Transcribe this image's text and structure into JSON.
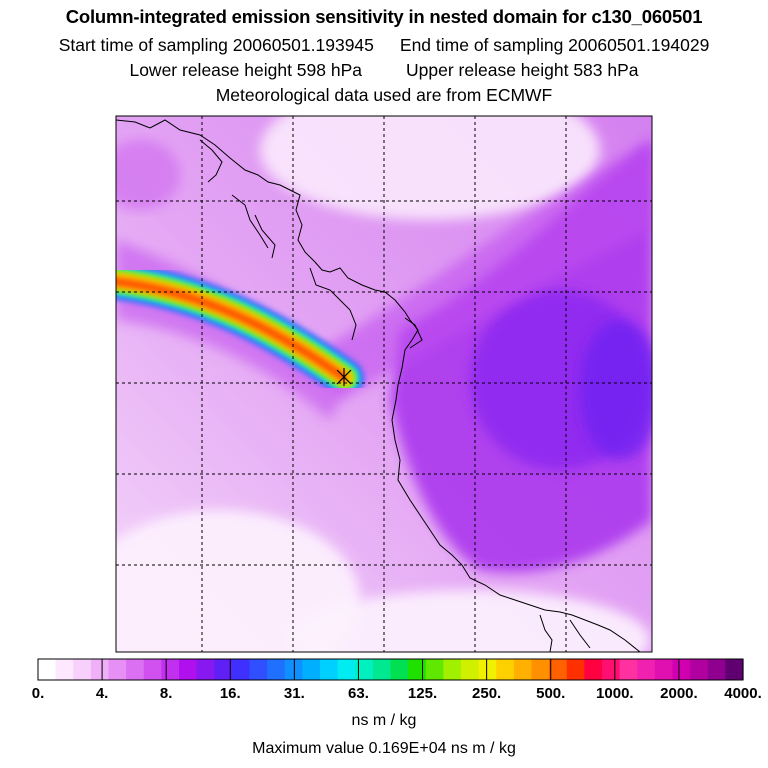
{
  "header": {
    "title": "Column-integrated emission sensitivity in nested domain for c130_060501",
    "start_label": "Start time of sampling 20060501.193945",
    "end_label": "End time of sampling 20060501.194029",
    "lower_label": "Lower release height  598 hPa",
    "upper_label": "Upper release height  583 hPa",
    "met_label": "Meteorological data used are from ECMWF"
  },
  "map": {
    "plume_color_core": "#ff3000",
    "source_marker": "cross-icon",
    "background_color": "#d878f0"
  },
  "colorbar": {
    "tick_labels": [
      "0.",
      "4.",
      "8.",
      "16.",
      "31.",
      "63.",
      "125.",
      "250.",
      "500.",
      "1000.",
      "2000.",
      "4000."
    ],
    "colors": [
      "#ffffff",
      "#fde8ff",
      "#f8d0fc",
      "#f0b0f8",
      "#e690f5",
      "#dc70f2",
      "#d050f0",
      "#c030ee",
      "#b010ee",
      "#8818f0",
      "#6020f5",
      "#4030ff",
      "#3050ff",
      "#2070ff",
      "#1090ff",
      "#00b0ff",
      "#00d0ff",
      "#00ecf0",
      "#00f0c0",
      "#00e890",
      "#00e050",
      "#20e000",
      "#60e800",
      "#a0f000",
      "#d0f000",
      "#f0f000",
      "#ffd000",
      "#ffb000",
      "#ff9000",
      "#ff6000",
      "#ff3000",
      "#ff0040",
      "#ff1070",
      "#ff30a0",
      "#f020b0",
      "#e010b0",
      "#d000b0",
      "#b000a0",
      "#900090",
      "#600070"
    ],
    "units": "ns m / kg",
    "max_value": "Maximum value  0.169E+04 ns m / kg"
  }
}
